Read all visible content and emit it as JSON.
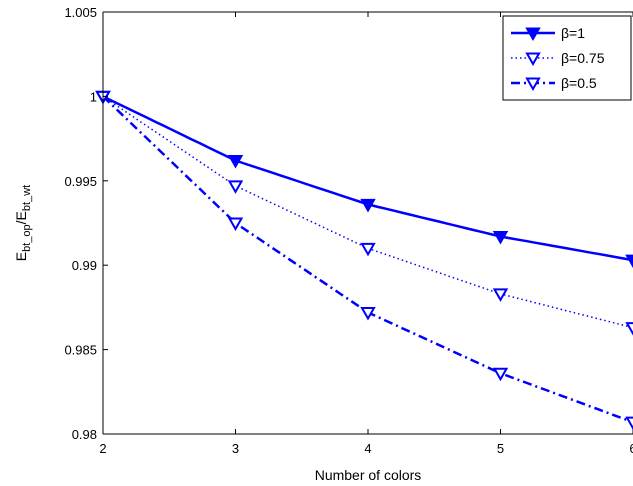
{
  "chart_data": {
    "type": "line",
    "xlabel": "Number of colors",
    "ylabel": {
      "main": "E",
      "sub1": "bt_op",
      "sep": "/E",
      "sub2": "bt_wt"
    },
    "x": [
      2,
      3,
      4,
      5,
      6
    ],
    "xlim": [
      2,
      6
    ],
    "ylim": [
      0.98,
      1.005
    ],
    "xticks": [
      2,
      3,
      4,
      5,
      6
    ],
    "xtick_labels": [
      "2",
      "3",
      "4",
      "5",
      "6"
    ],
    "yticks": [
      0.98,
      0.985,
      0.99,
      0.995,
      1.0,
      1.005
    ],
    "ytick_labels": [
      "0.98",
      "0.985",
      "0.99",
      "0.995",
      "1",
      "1.005"
    ],
    "grid": false,
    "legend_position": "top-right",
    "color": "#0000ff",
    "series": [
      {
        "name": "β=1",
        "style": "solid",
        "values": [
          1.0,
          0.9962,
          0.9936,
          0.9917,
          0.9903
        ]
      },
      {
        "name": "β=0.75",
        "style": "dotted",
        "values": [
          1.0,
          0.9947,
          0.991,
          0.9883,
          0.9863
        ]
      },
      {
        "name": "β=0.5",
        "style": "dashdot",
        "values": [
          1.0,
          0.9925,
          0.9872,
          0.9836,
          0.9807
        ]
      }
    ]
  }
}
